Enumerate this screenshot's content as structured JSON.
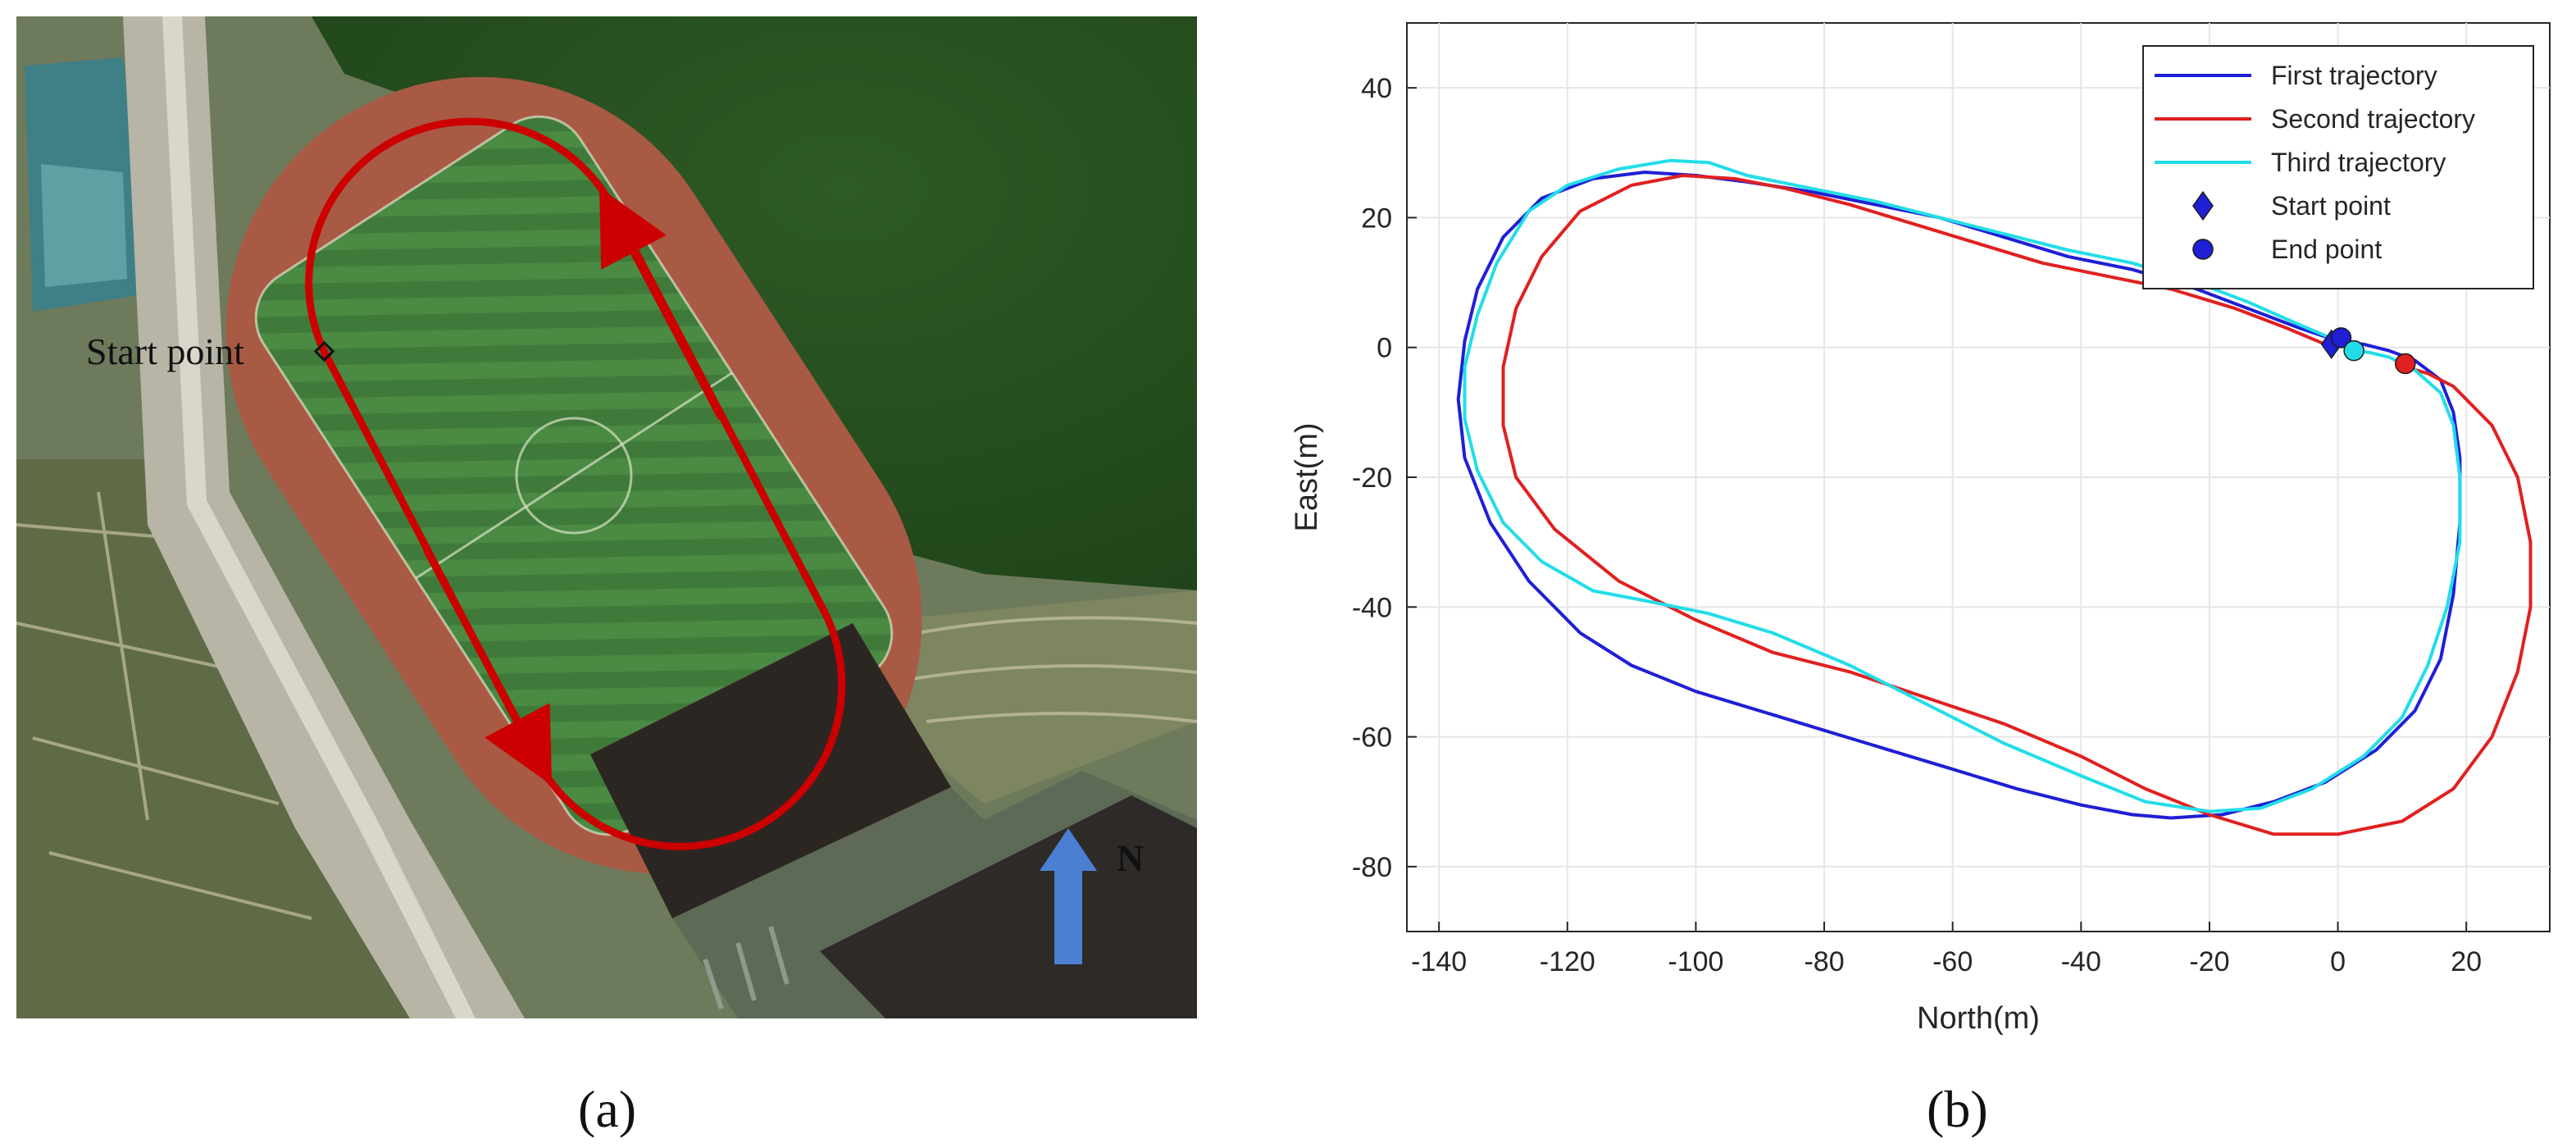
{
  "panel_a": {
    "label": "(a)",
    "start_point_label": "Start point",
    "north_label": "N",
    "route_color": "#cc0000",
    "north_arrow_color": "#4a7fd1"
  },
  "panel_b": {
    "label": "(b)"
  },
  "chart_data": {
    "type": "line",
    "xlabel": "North(m)",
    "ylabel": "East(m)",
    "xlim": [
      -145,
      33
    ],
    "ylim": [
      -90,
      50
    ],
    "xticks": [
      -140,
      -120,
      -100,
      -80,
      -60,
      -40,
      -20,
      0,
      20
    ],
    "yticks": [
      40,
      20,
      0,
      -20,
      -40,
      -60,
      -80
    ],
    "grid": true,
    "legend_position": "top-right",
    "series": [
      {
        "name": "First trajectory",
        "color": "#1f1fd6",
        "x": [
          0,
          -6,
          -14,
          -22,
          -32,
          -42,
          -52,
          -62,
          -72,
          -82,
          -92,
          -100,
          -108,
          -116,
          -124,
          -130,
          -134,
          -136,
          -137,
          -136,
          -132,
          -126,
          -118,
          -110,
          -100,
          -90,
          -80,
          -70,
          -60,
          -50,
          -40,
          -32,
          -26,
          -18,
          -10,
          -2,
          6,
          12,
          16,
          18,
          19,
          19,
          18,
          16,
          12,
          8,
          4,
          0
        ],
        "y": [
          1,
          3,
          6,
          9,
          12,
          14,
          17,
          20,
          22,
          24,
          25.5,
          26.5,
          27,
          26,
          23,
          17,
          9,
          1,
          -8,
          -17,
          -27,
          -36,
          -44,
          -49,
          -53,
          -56,
          -59,
          -62,
          -65,
          -68,
          -70.5,
          -72,
          -72.5,
          -72,
          -70,
          -67,
          -62,
          -56,
          -48,
          -38,
          -27,
          -17,
          -10,
          -5,
          -2,
          -0.5,
          0.5,
          1
        ]
      },
      {
        "name": "Second trajectory",
        "color": "#e02020",
        "x": [
          -2,
          -8,
          -16,
          -26,
          -36,
          -46,
          -56,
          -66,
          -76,
          -86,
          -94,
          -102,
          -110,
          -118,
          -124,
          -128,
          -130,
          -130,
          -128,
          -122,
          -112,
          -100,
          -88,
          -76,
          -64,
          -52,
          -40,
          -30,
          -20,
          -10,
          0,
          10,
          18,
          24,
          28,
          30,
          30,
          28,
          24,
          18,
          14,
          10.5
        ],
        "y": [
          0.5,
          3,
          6,
          9,
          11,
          13,
          16,
          19,
          22,
          24.5,
          26,
          26.5,
          25,
          21,
          14,
          6,
          -3,
          -12,
          -20,
          -28,
          -36,
          -42,
          -47,
          -50,
          -54,
          -58,
          -63,
          -68,
          -72,
          -75,
          -75,
          -73,
          -68,
          -60,
          -50,
          -40,
          -30,
          -20,
          -12,
          -6,
          -4,
          -3
        ]
      },
      {
        "name": "Third trajectory",
        "color": "#22dde8",
        "x": [
          0,
          -6,
          -14,
          -22,
          -32,
          -42,
          -52,
          -62,
          -72,
          -82,
          -92,
          -98,
          -104,
          -112,
          -120,
          -126,
          -131,
          -134,
          -136,
          -136,
          -134,
          -130,
          -124,
          -116,
          -108,
          -98,
          -88,
          -76,
          -64,
          -52,
          -40,
          -30,
          -20,
          -12,
          -4,
          4,
          10,
          14,
          17,
          19,
          19,
          18,
          16,
          12,
          8,
          5,
          2.5
        ],
        "y": [
          1,
          3.5,
          7,
          10,
          13,
          15,
          17.5,
          20,
          22.5,
          24.5,
          26.5,
          28.5,
          28.8,
          27.5,
          25,
          21,
          13,
          5,
          -3,
          -11,
          -19,
          -27,
          -33,
          -37.5,
          -39,
          -41,
          -44,
          -49,
          -55,
          -61,
          -66,
          -70,
          -71.5,
          -71,
          -68,
          -63,
          -57,
          -49,
          -40,
          -30,
          -20,
          -12,
          -7,
          -3.5,
          -1.5,
          -0.8,
          -0.5
        ]
      }
    ],
    "markers": [
      {
        "name": "Start point",
        "shape": "diamond",
        "color": "#1f1fd6",
        "x": -1,
        "y": 0.5
      },
      {
        "name": "End point",
        "shape": "circle",
        "color": "#1f1fd6",
        "x": 0.5,
        "y": 1.5
      },
      {
        "name": "End point (Second trajectory)",
        "shape": "circle",
        "color": "#e02020",
        "x": 10.5,
        "y": -2.5
      },
      {
        "name": "End point (Third trajectory)",
        "shape": "circle",
        "color": "#22dde8",
        "x": 2.5,
        "y": -0.5
      }
    ],
    "legend": [
      {
        "label": "First trajectory",
        "kind": "line",
        "color": "#1f1fd6"
      },
      {
        "label": "Second trajectory",
        "kind": "line",
        "color": "#e02020"
      },
      {
        "label": "Third trajectory",
        "kind": "line",
        "color": "#22dde8"
      },
      {
        "label": "Start point",
        "kind": "diamond",
        "color": "#1f1fd6"
      },
      {
        "label": "End point",
        "kind": "circle",
        "color": "#1f1fd6"
      }
    ]
  }
}
